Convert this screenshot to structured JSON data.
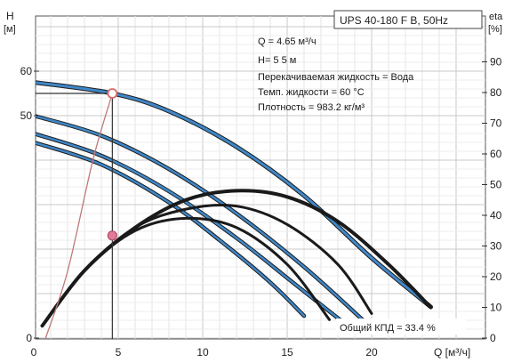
{
  "chart_data": {
    "type": "line",
    "title": "UPS 40-180 F B, 50Hz",
    "xlabel": "Q [м³/ч]",
    "ylabel_left": "H\n[м]",
    "ylabel_right": "eta\n[%]",
    "xlim": [
      0,
      25
    ],
    "ylim_left": [
      0,
      65
    ],
    "ylim_right": [
      0,
      100
    ],
    "x_ticks": [
      0,
      5,
      10,
      15,
      20
    ],
    "y_ticks_left": [
      0,
      50,
      60
    ],
    "y_ticks_right": [
      0,
      10,
      20,
      30,
      40,
      50,
      60,
      70,
      80,
      90
    ],
    "grid": true,
    "info": {
      "q": "Q = 4.65 м³/ч",
      "h": "H=  5 5  м",
      "fluid": "Перекачиваемая жидкость = Вода",
      "temp": "Темп. жидкости = 60 °C",
      "density": "Плотность = 983.2 кг/м³"
    },
    "efficiency_label": "Общий КПД = 33.4 %",
    "operating_point": {
      "q": 4.65,
      "h": 55,
      "eta": 33.4
    },
    "head_curves": [
      {
        "x": [
          0,
          4.65,
          8,
          12,
          16,
          20,
          23.5
        ],
        "y": [
          57.5,
          55,
          51,
          43,
          32,
          18,
          7
        ]
      },
      {
        "x": [
          0,
          4,
          8,
          12,
          16,
          19.5
        ],
        "y": [
          50,
          45.5,
          38,
          28,
          16,
          4
        ]
      },
      {
        "x": [
          0,
          4,
          8,
          12,
          15.5,
          18.5
        ],
        "y": [
          46,
          41,
          33,
          22.5,
          12,
          3
        ]
      },
      {
        "x": [
          0,
          4,
          8,
          11,
          14,
          16
        ],
        "y": [
          44,
          39,
          30.5,
          22,
          12.5,
          5
        ]
      }
    ],
    "efficiency_curves": [
      {
        "x": [
          0.5,
          3,
          6,
          9,
          12,
          15,
          18,
          21,
          23.5
        ],
        "y": [
          4,
          22,
          36,
          45,
          48,
          46,
          38,
          24,
          10
        ]
      },
      {
        "x": [
          0.5,
          3,
          6,
          9,
          12,
          15,
          18,
          20
        ],
        "y": [
          4,
          22,
          36,
          42,
          43,
          37,
          24,
          8
        ]
      },
      {
        "x": [
          0.5,
          3,
          6,
          9,
          12,
          15,
          17.5
        ],
        "y": [
          4,
          22,
          35,
          39,
          36,
          24,
          6
        ]
      }
    ],
    "power_curve": {
      "x": [
        0.7,
        2,
        3.5,
        4.65
      ],
      "y": [
        0,
        15,
        40,
        55
      ]
    }
  }
}
